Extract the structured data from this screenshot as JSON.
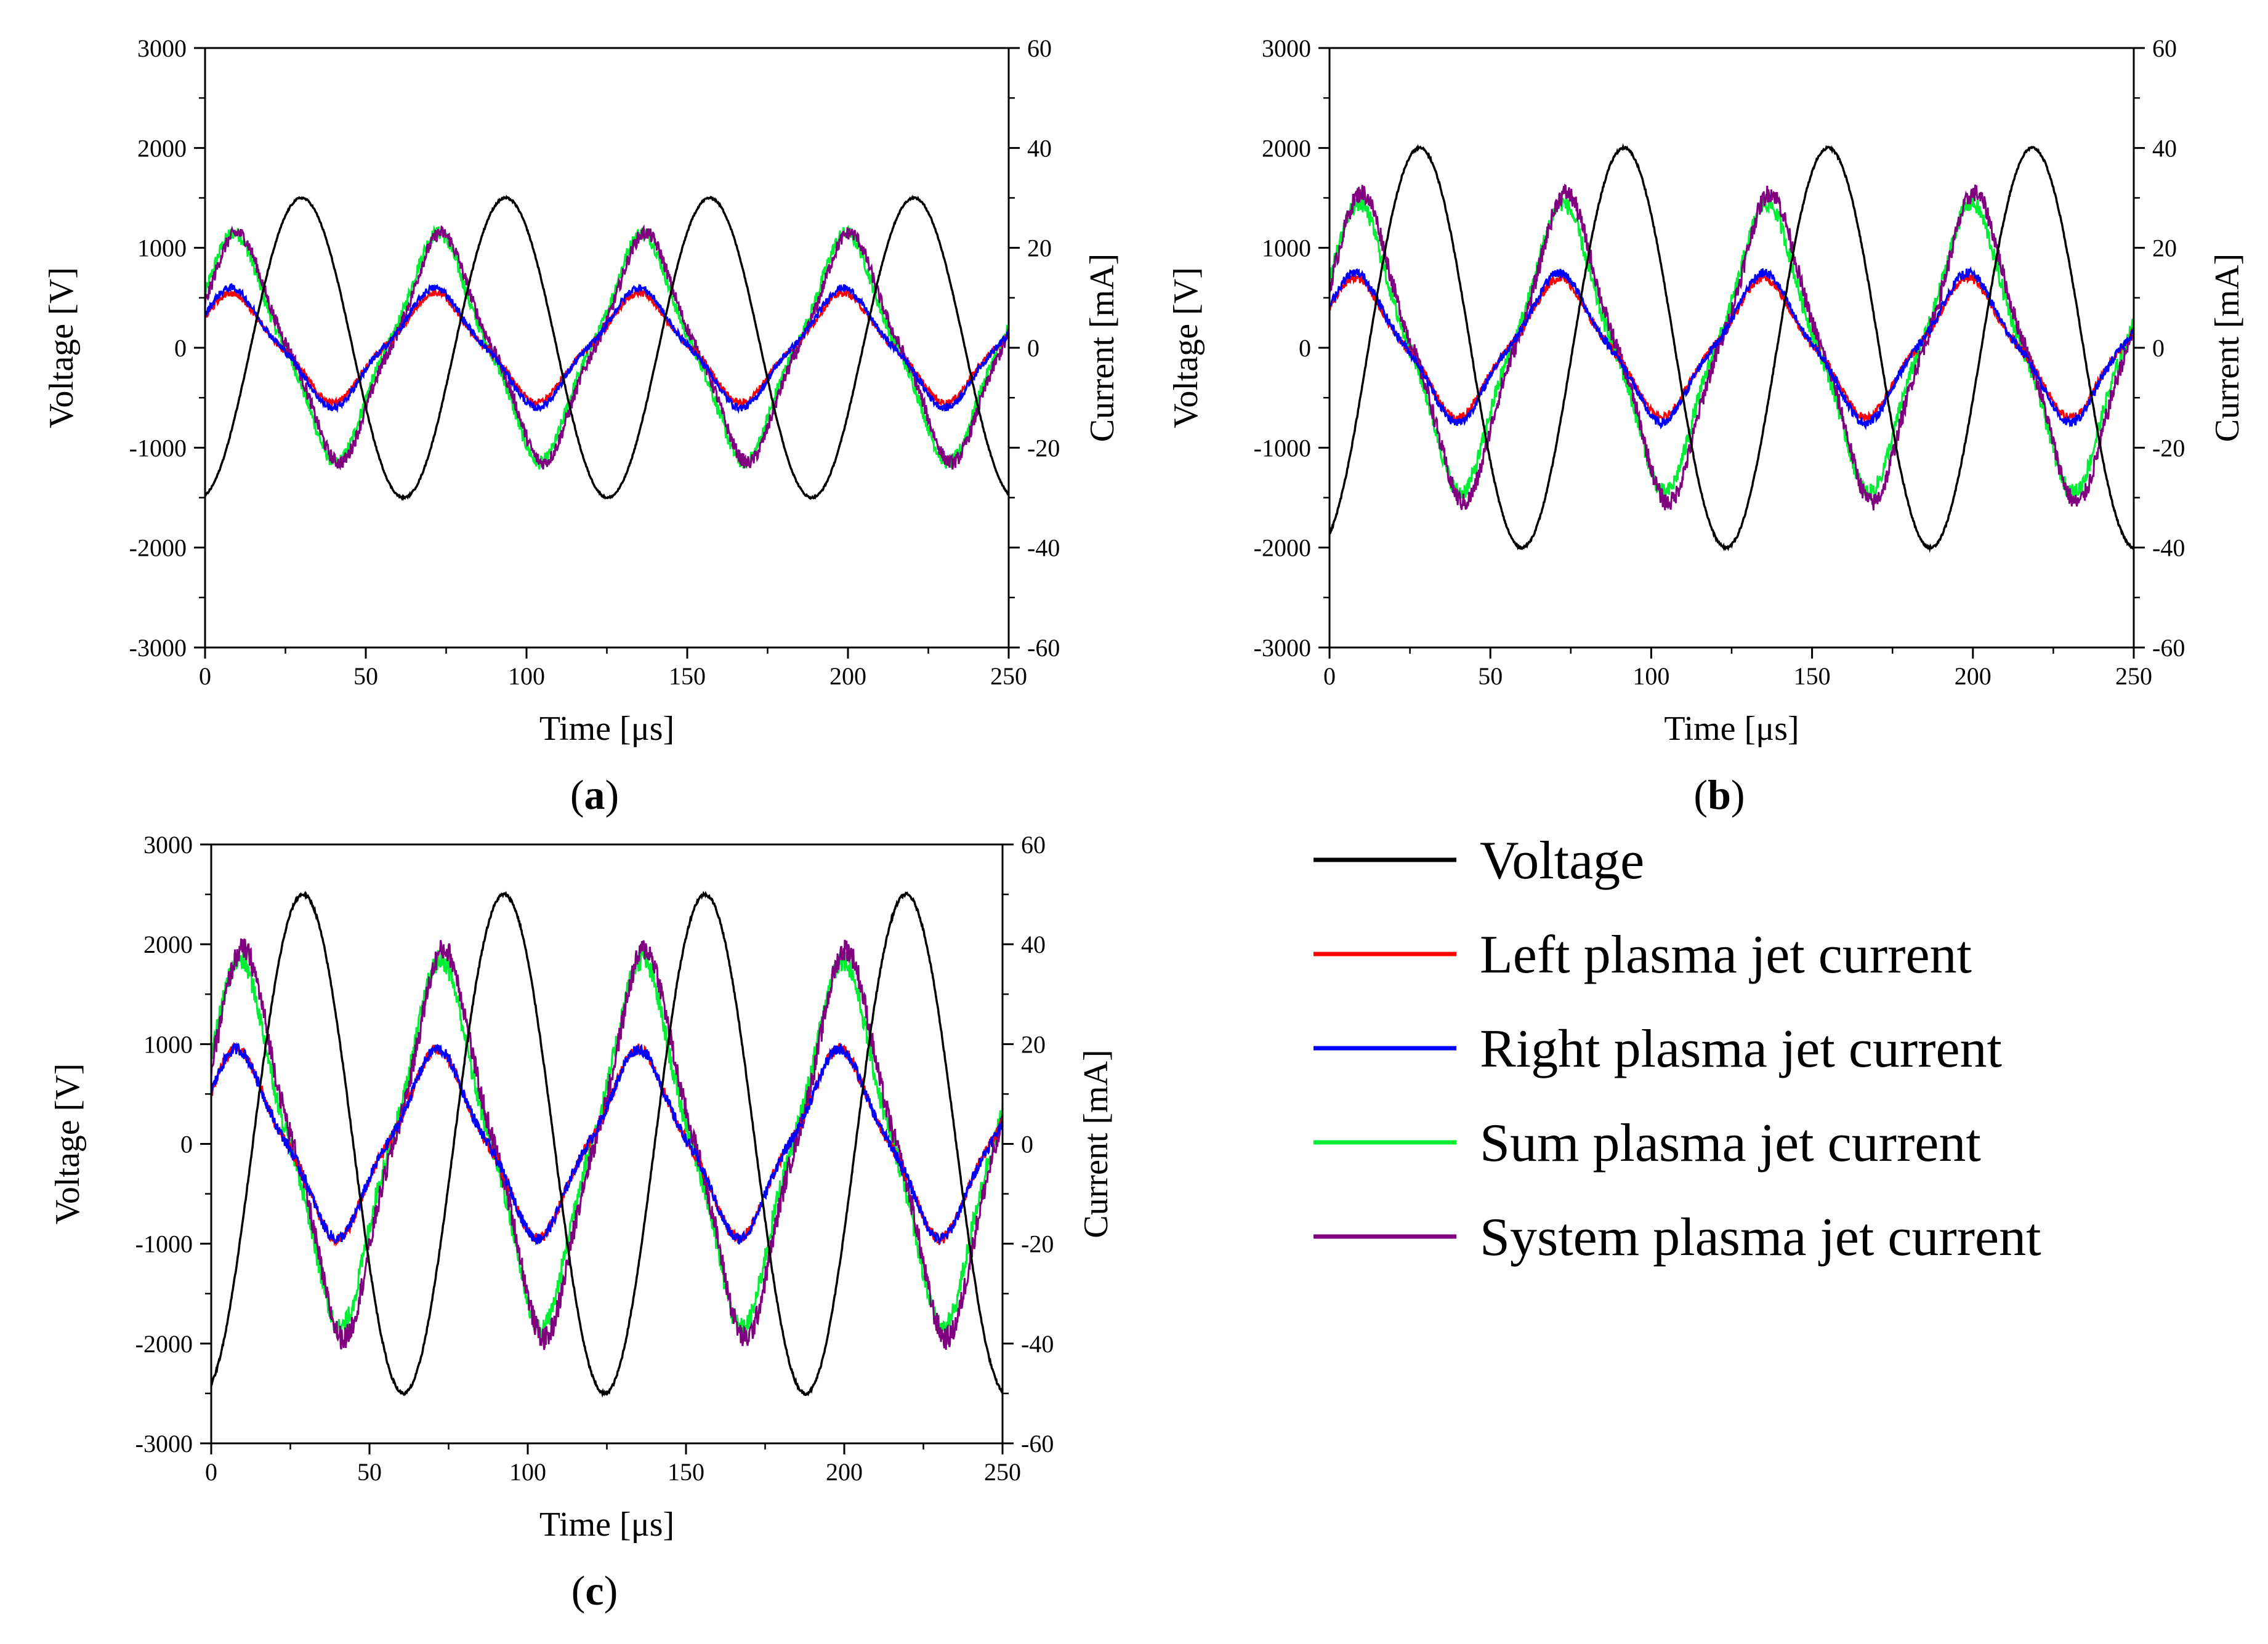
{
  "legend": {
    "items": [
      {
        "label": "Voltage",
        "color": "#000000"
      },
      {
        "label": "Left plasma jet current",
        "color": "#ff0000"
      },
      {
        "label": "Right plasma jet current",
        "color": "#0000ff"
      },
      {
        "label": "Sum plasma jet current",
        "color": "#00ee33"
      },
      {
        "label": "System plasma jet current",
        "color": "#800080"
      }
    ]
  },
  "chart_data": [
    {
      "type": "line",
      "panel_label": "a",
      "xlabel": "Time [μs]",
      "ylabel_left": "Voltage [V]",
      "ylabel_right": "Current [mA]",
      "xlim": [
        0,
        250
      ],
      "ylim_left": [
        -3000,
        3000
      ],
      "ylim_right": [
        -60,
        60
      ],
      "xticks": [
        0,
        50,
        100,
        150,
        200,
        250
      ],
      "yticks_left": [
        -3000,
        -2000,
        -1000,
        0,
        1000,
        2000,
        3000
      ],
      "yticks_right": [
        -60,
        -40,
        -20,
        0,
        20,
        40,
        60
      ],
      "period_us": 63.5,
      "series": [
        {
          "name": "Voltage",
          "axis": "left",
          "amplitude": 1500,
          "phase_us": 30
        },
        {
          "name": "Left plasma jet current",
          "axis": "right",
          "amplitude": 11,
          "phase_us": 8
        },
        {
          "name": "Right plasma jet current",
          "axis": "right",
          "amplitude": 12,
          "phase_us": 8
        },
        {
          "name": "Sum plasma jet current",
          "axis": "right",
          "amplitude": 23,
          "phase_us": 9
        },
        {
          "name": "System plasma jet current",
          "axis": "right",
          "amplitude": 23,
          "phase_us": 10
        }
      ]
    },
    {
      "type": "line",
      "panel_label": "b",
      "xlabel": "Time [μs]",
      "ylabel_left": "Voltage [V]",
      "ylabel_right": "Current [mA]",
      "xlim": [
        0,
        250
      ],
      "ylim_left": [
        -3000,
        3000
      ],
      "ylim_right": [
        -60,
        60
      ],
      "xticks": [
        0,
        50,
        100,
        150,
        200,
        250
      ],
      "yticks_left": [
        -3000,
        -2000,
        -1000,
        0,
        1000,
        2000,
        3000
      ],
      "yticks_right": [
        -60,
        -40,
        -20,
        0,
        20,
        40,
        60
      ],
      "period_us": 63.5,
      "series": [
        {
          "name": "Voltage",
          "axis": "left",
          "amplitude": 2000,
          "phase_us": 28
        },
        {
          "name": "Left plasma jet current",
          "axis": "right",
          "amplitude": 14,
          "phase_us": 8
        },
        {
          "name": "Right plasma jet current",
          "axis": "right",
          "amplitude": 15,
          "phase_us": 8
        },
        {
          "name": "Sum plasma jet current",
          "axis": "right",
          "amplitude": 29,
          "phase_us": 9
        },
        {
          "name": "System plasma jet current",
          "axis": "right",
          "amplitude": 31,
          "phase_us": 10
        }
      ]
    },
    {
      "type": "line",
      "panel_label": "c",
      "xlabel": "Time [μs]",
      "ylabel_left": "Voltage [V]",
      "ylabel_right": "Current [mA]",
      "xlim": [
        0,
        250
      ],
      "ylim_left": [
        -3000,
        3000
      ],
      "ylim_right": [
        -60,
        60
      ],
      "xticks": [
        0,
        50,
        100,
        150,
        200,
        250
      ],
      "yticks_left": [
        -3000,
        -2000,
        -1000,
        0,
        1000,
        2000,
        3000
      ],
      "yticks_right": [
        -60,
        -40,
        -20,
        0,
        20,
        40,
        60
      ],
      "period_us": 63.5,
      "series": [
        {
          "name": "Voltage",
          "axis": "left",
          "amplitude": 2500,
          "phase_us": 29
        },
        {
          "name": "Left plasma jet current",
          "axis": "right",
          "amplitude": 19,
          "phase_us": 8
        },
        {
          "name": "Right plasma jet current",
          "axis": "right",
          "amplitude": 19,
          "phase_us": 8
        },
        {
          "name": "Sum plasma jet current",
          "axis": "right",
          "amplitude": 37,
          "phase_us": 9
        },
        {
          "name": "System plasma jet current",
          "axis": "right",
          "amplitude": 39,
          "phase_us": 10
        }
      ]
    }
  ]
}
